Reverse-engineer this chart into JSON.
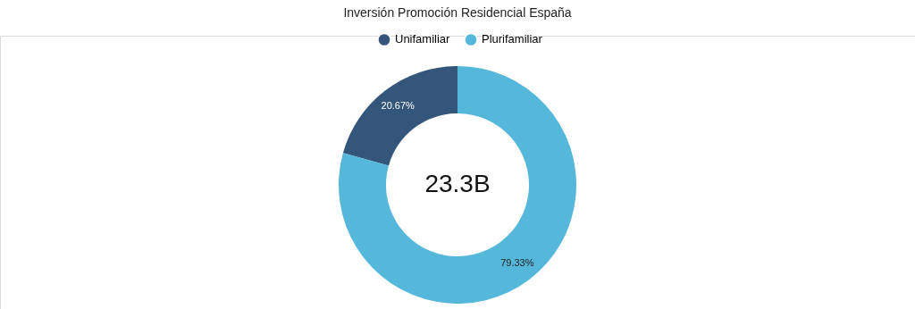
{
  "chart_data": {
    "type": "donut",
    "title": "Inversión Promoción Residencial España",
    "categories": [
      "Unifamiliar",
      "Plurifamiliar"
    ],
    "values": [
      20.67,
      79.33
    ],
    "colors": [
      "#34567a",
      "#55b8db"
    ],
    "value_labels": [
      "20.67%",
      "79.33%"
    ],
    "legend": "top",
    "annotations": [
      "23.3B"
    ]
  }
}
